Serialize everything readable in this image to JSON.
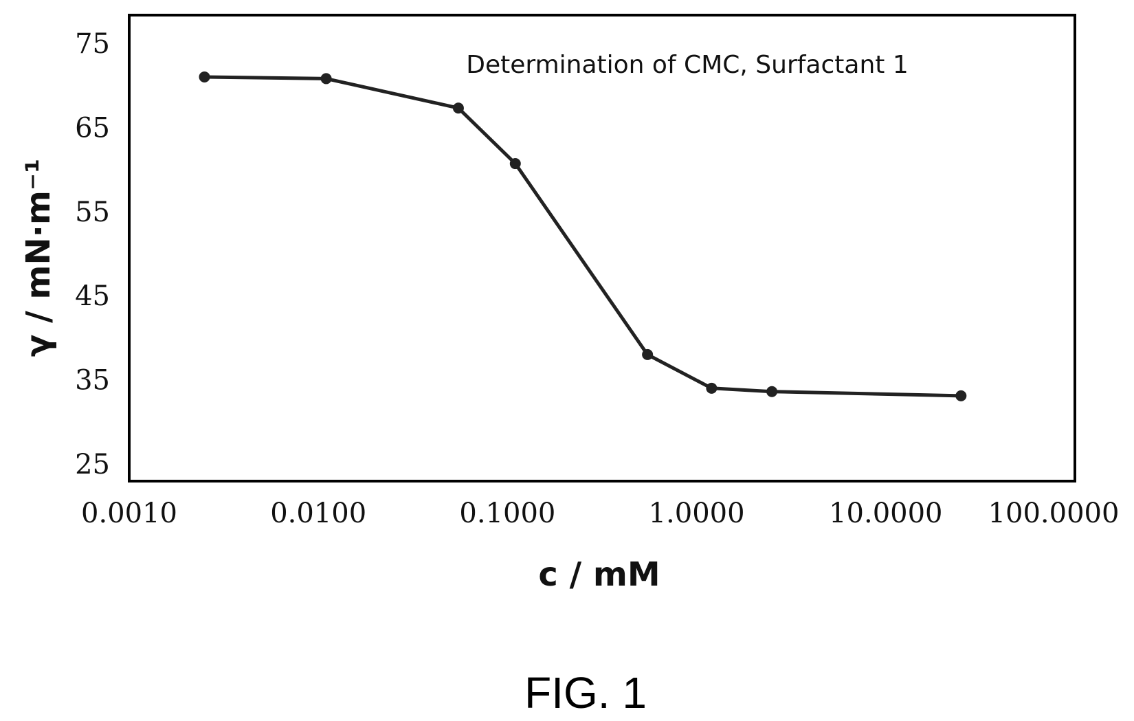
{
  "chart_data": {
    "type": "line",
    "title": "Determination of CMC, Surfactant 1",
    "xlabel": "c / mM",
    "ylabel": "γ / mN·m⁻¹",
    "x_scale": "log",
    "xlim": [
      0.001,
      100
    ],
    "ylim": [
      25,
      75
    ],
    "x_ticks": [
      "0.0010",
      "0.0100",
      "0.1000",
      "1.0000",
      "10.0000",
      "100.0000"
    ],
    "y_ticks": [
      "25",
      "35",
      "45",
      "55",
      "65",
      "75"
    ],
    "grid": false,
    "legend": "none",
    "series": [
      {
        "x": [
          0.0025,
          0.011,
          0.055,
          0.11,
          0.55,
          1.2,
          2.5,
          25
        ],
        "y": [
          71.0,
          70.8,
          67.3,
          60.7,
          38.0,
          34.0,
          33.6,
          33.1
        ],
        "color": "#222222",
        "marker": "circle"
      }
    ]
  },
  "caption": "FIG. 1"
}
